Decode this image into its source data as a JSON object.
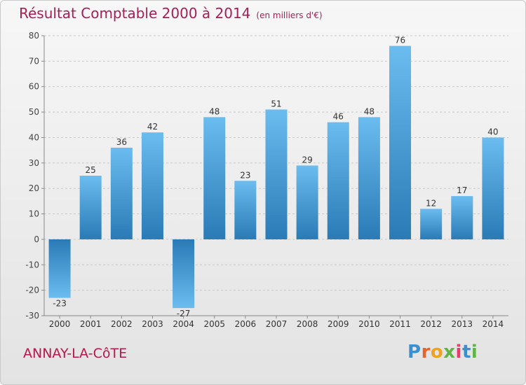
{
  "chart_data": {
    "type": "bar",
    "title": "Résultat Comptable 2000 à 2014",
    "subtitle": "(en milliers d'€)",
    "categories": [
      "2000",
      "2001",
      "2002",
      "2003",
      "2004",
      "2005",
      "2006",
      "2007",
      "2008",
      "2009",
      "2010",
      "2011",
      "2012",
      "2013",
      "2014"
    ],
    "values": [
      -23,
      25,
      36,
      42,
      -27,
      48,
      23,
      51,
      29,
      46,
      48,
      76,
      12,
      17,
      40
    ],
    "ylim": [
      -30,
      80
    ],
    "yticks": [
      -30,
      -20,
      -10,
      0,
      10,
      20,
      30,
      40,
      50,
      60,
      70,
      80
    ],
    "grid": true,
    "colors": {
      "bar_light": "#6bbcef",
      "bar_dark": "#2a7ab6",
      "title": "#a31f55"
    }
  },
  "commune": "ANNAY-LA-CôTE",
  "logo": {
    "letters": [
      "P",
      "r",
      "o",
      "x",
      "i",
      "t",
      "i"
    ],
    "colors": [
      "#3a8fd0",
      "#e8622c",
      "#f0a21b",
      "#5eb543",
      "#e83a6b",
      "#3a8fd0",
      "#5eb543"
    ]
  }
}
